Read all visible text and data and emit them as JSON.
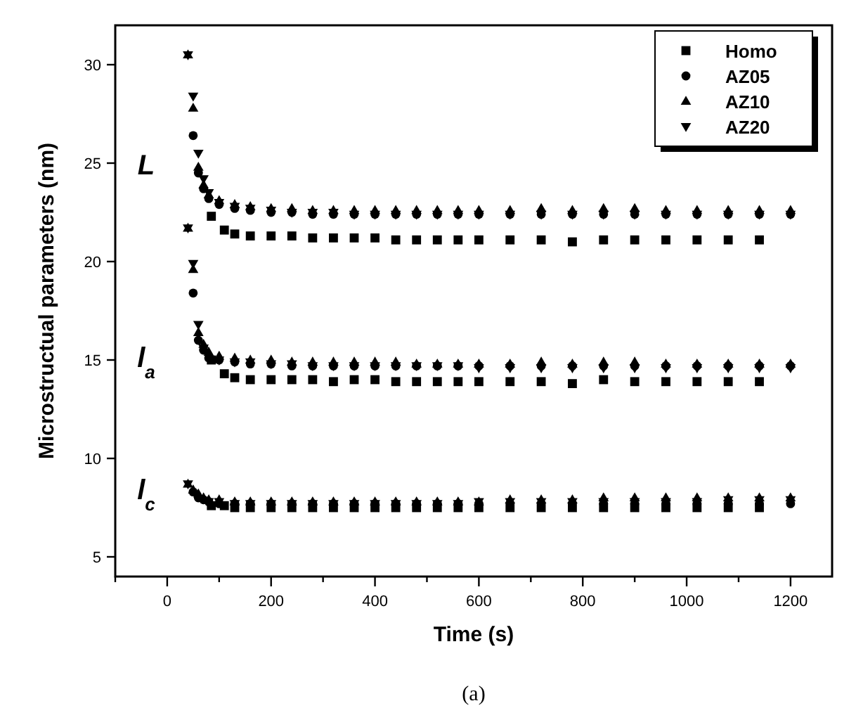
{
  "chart_data": {
    "type": "scatter",
    "xlabel": "Time (s)",
    "ylabel": "Microstructual parameters (nm)",
    "xlim": [
      -100,
      1280
    ],
    "ylim": [
      4,
      32
    ],
    "xticks": [
      {
        "value": -100,
        "label": null
      },
      0,
      {
        "value": 100,
        "label": null
      },
      200,
      {
        "value": 300,
        "label": null
      },
      400,
      {
        "value": 500,
        "label": null
      },
      600,
      {
        "value": 700,
        "label": null
      },
      800,
      {
        "value": 900,
        "label": null
      },
      1000,
      {
        "value": 1100,
        "label": null
      },
      1200
    ],
    "yticks": [
      5,
      10,
      15,
      20,
      25,
      30
    ],
    "grid": false,
    "legend": "top right",
    "annotations": [
      "L",
      "l$_{a}$",
      "l$_{c}$",
      "(a)"
    ],
    "series": [
      {
        "name": "Homo",
        "color": "#000000",
        "marker": "square",
        "x": [
          85,
          110,
          130,
          160,
          200,
          240,
          280,
          320,
          360,
          400,
          440,
          480,
          520,
          560,
          600,
          660,
          720,
          780,
          840,
          900,
          960,
          1020,
          1080,
          1140,
          85,
          110,
          130,
          160,
          200,
          240,
          280,
          320,
          360,
          400,
          440,
          480,
          520,
          560,
          600,
          660,
          720,
          780,
          840,
          900,
          960,
          1020,
          1080,
          1140,
          85,
          110,
          130,
          160,
          200,
          240,
          280,
          320,
          360,
          400,
          440,
          480,
          520,
          560,
          600,
          660,
          720,
          780,
          840,
          900,
          960,
          1020,
          1080,
          1140
        ],
        "values": [
          22.3,
          21.6,
          21.4,
          21.3,
          21.3,
          21.3,
          21.2,
          21.2,
          21.2,
          21.2,
          21.1,
          21.1,
          21.1,
          21.1,
          21.1,
          21.1,
          21.1,
          21.0,
          21.1,
          21.1,
          21.1,
          21.1,
          21.1,
          21.1,
          15.0,
          14.3,
          14.1,
          14.0,
          14.0,
          14.0,
          14.0,
          13.9,
          14.0,
          14.0,
          13.9,
          13.9,
          13.9,
          13.9,
          13.9,
          13.9,
          13.9,
          13.8,
          14.0,
          13.9,
          13.9,
          13.9,
          13.9,
          13.9,
          7.6,
          7.6,
          7.5,
          7.5,
          7.5,
          7.5,
          7.5,
          7.5,
          7.5,
          7.5,
          7.5,
          7.5,
          7.5,
          7.5,
          7.5,
          7.5,
          7.5,
          7.5,
          7.5,
          7.5,
          7.5,
          7.5,
          7.5,
          7.5
        ]
      },
      {
        "name": "AZ05",
        "color": "#000000",
        "marker": "circle",
        "x": [
          50,
          60,
          70,
          80,
          100,
          130,
          160,
          200,
          240,
          280,
          320,
          360,
          400,
          440,
          480,
          520,
          560,
          600,
          660,
          720,
          780,
          840,
          900,
          960,
          1020,
          1080,
          1140,
          1200,
          50,
          60,
          70,
          80,
          100,
          130,
          160,
          200,
          240,
          280,
          320,
          360,
          400,
          440,
          480,
          520,
          560,
          600,
          660,
          720,
          780,
          840,
          900,
          960,
          1020,
          1080,
          1140,
          1200,
          50,
          60,
          70,
          80,
          100,
          130,
          160,
          200,
          240,
          280,
          320,
          360,
          400,
          440,
          480,
          520,
          560,
          600,
          840,
          900,
          960,
          1020,
          1080,
          1140,
          1200
        ],
        "values": [
          26.4,
          24.5,
          23.7,
          23.2,
          22.9,
          22.7,
          22.6,
          22.5,
          22.5,
          22.4,
          22.4,
          22.4,
          22.4,
          22.4,
          22.4,
          22.4,
          22.4,
          22.4,
          22.4,
          22.4,
          22.4,
          22.4,
          22.4,
          22.4,
          22.4,
          22.4,
          22.4,
          22.4,
          18.4,
          16.0,
          15.5,
          15.1,
          15.0,
          14.9,
          14.8,
          14.8,
          14.7,
          14.7,
          14.7,
          14.7,
          14.7,
          14.7,
          14.7,
          14.7,
          14.7,
          14.7,
          14.7,
          14.7,
          14.7,
          14.7,
          14.7,
          14.7,
          14.7,
          14.7,
          14.7,
          14.7,
          8.3,
          8.0,
          7.9,
          7.8,
          7.7,
          7.7,
          7.7,
          7.7,
          7.7,
          7.7,
          7.7,
          7.7,
          7.7,
          7.7,
          7.7,
          7.7,
          7.7,
          7.7,
          7.7,
          7.7,
          7.7,
          7.7,
          7.7,
          7.7,
          7.7
        ]
      },
      {
        "name": "AZ10",
        "color": "#000000",
        "marker": "triangle",
        "x": [
          40,
          50,
          60,
          70,
          80,
          100,
          130,
          160,
          200,
          240,
          280,
          320,
          360,
          400,
          440,
          480,
          520,
          560,
          600,
          660,
          720,
          780,
          840,
          900,
          960,
          1020,
          1080,
          1140,
          1200,
          40,
          50,
          60,
          70,
          80,
          100,
          130,
          160,
          200,
          240,
          280,
          320,
          360,
          400,
          440,
          480,
          520,
          560,
          600,
          660,
          720,
          780,
          840,
          900,
          960,
          1020,
          1080,
          1140,
          1200,
          40,
          50,
          60,
          70,
          80,
          100,
          130,
          160,
          200,
          240,
          280,
          320,
          360,
          400,
          440,
          480,
          520,
          560,
          600,
          660,
          720,
          780,
          840,
          900,
          960,
          1020,
          1080,
          1140,
          1200
        ],
        "values": [
          30.5,
          27.8,
          24.8,
          23.9,
          23.4,
          23.1,
          22.9,
          22.8,
          22.7,
          22.7,
          22.6,
          22.6,
          22.6,
          22.6,
          22.6,
          22.6,
          22.6,
          22.6,
          22.6,
          22.6,
          22.7,
          22.6,
          22.7,
          22.7,
          22.6,
          22.6,
          22.6,
          22.6,
          22.6,
          21.7,
          19.6,
          16.4,
          15.8,
          15.4,
          15.2,
          15.1,
          15.0,
          15.0,
          14.9,
          14.9,
          14.9,
          14.9,
          14.9,
          14.9,
          14.8,
          14.8,
          14.8,
          14.8,
          14.8,
          14.9,
          14.8,
          14.9,
          14.9,
          14.8,
          14.8,
          14.8,
          14.8,
          14.8,
          8.7,
          8.4,
          8.2,
          8.0,
          7.9,
          7.9,
          7.8,
          7.8,
          7.8,
          7.8,
          7.8,
          7.8,
          7.8,
          7.8,
          7.8,
          7.8,
          7.8,
          7.8,
          7.8,
          7.9,
          7.9,
          7.9,
          8.0,
          8.0,
          8.0,
          8.0,
          8.0,
          8.0,
          8.0
        ]
      },
      {
        "name": "AZ20",
        "color": "#000000",
        "marker": "triangle-down",
        "x": [
          40,
          50,
          60,
          70,
          80,
          100,
          130,
          160,
          200,
          240,
          280,
          320,
          360,
          400,
          440,
          480,
          520,
          560,
          600,
          660,
          720,
          780,
          840,
          900,
          960,
          1020,
          1080,
          1140,
          1200,
          40,
          50,
          60,
          70,
          100,
          130,
          160,
          200,
          240,
          280,
          320,
          360,
          400,
          440,
          480,
          520,
          560,
          600,
          660,
          720,
          780,
          840,
          900,
          960,
          1020,
          1080,
          1140,
          1200,
          40,
          80,
          100,
          130,
          160,
          200,
          240,
          280,
          320,
          360,
          400,
          440,
          480,
          520,
          560,
          600,
          660,
          720,
          780,
          840,
          900,
          960,
          1020,
          1080,
          1140,
          1200
        ],
        "values": [
          30.5,
          28.4,
          25.5,
          24.2,
          23.5,
          23.0,
          22.8,
          22.7,
          22.6,
          22.5,
          22.5,
          22.5,
          22.4,
          22.4,
          22.4,
          22.4,
          22.4,
          22.4,
          22.4,
          22.4,
          22.4,
          22.4,
          22.4,
          22.4,
          22.4,
          22.4,
          22.4,
          22.4,
          22.4,
          21.7,
          19.9,
          16.8,
          15.6,
          15.0,
          14.9,
          14.9,
          14.8,
          14.8,
          14.7,
          14.7,
          14.7,
          14.7,
          14.7,
          14.7,
          14.7,
          14.7,
          14.6,
          14.6,
          14.6,
          14.6,
          14.6,
          14.6,
          14.6,
          14.6,
          14.6,
          14.6,
          14.6,
          8.7,
          7.8,
          7.8,
          7.7,
          7.7,
          7.7,
          7.7,
          7.7,
          7.7,
          7.7,
          7.7,
          7.7,
          7.7,
          7.7,
          7.7,
          7.8,
          7.8,
          7.8,
          7.8,
          7.8,
          7.8,
          7.8,
          7.8,
          7.9,
          7.9,
          7.9
        ]
      }
    ]
  }
}
